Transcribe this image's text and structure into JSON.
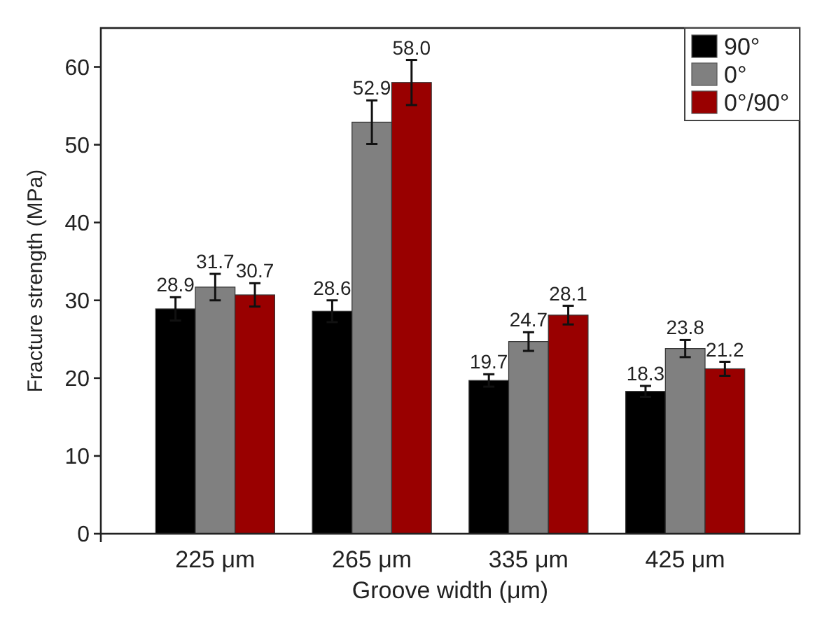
{
  "chart_data": {
    "type": "bar",
    "xlabel": "Groove width (μm)",
    "ylabel": "Fracture strength (MPa)",
    "categories": [
      "225 μm",
      "265 μm",
      "335 μm",
      "425 μm"
    ],
    "series": [
      {
        "name": "90°",
        "color": "#000000",
        "values": [
          28.9,
          28.6,
          19.7,
          18.3
        ],
        "value_labels": [
          "28.9",
          "28.6",
          "19.7",
          "18.3"
        ],
        "errors": [
          1.5,
          1.4,
          0.8,
          0.7
        ]
      },
      {
        "name": "0°",
        "color": "#808080",
        "values": [
          31.7,
          52.9,
          24.7,
          23.8
        ],
        "value_labels": [
          "31.7",
          "52.9",
          "24.7",
          "23.8"
        ],
        "errors": [
          1.7,
          2.8,
          1.2,
          1.1
        ]
      },
      {
        "name": "0°/90°",
        "color": "#990000",
        "values": [
          30.7,
          58.0,
          28.1,
          21.2
        ],
        "value_labels": [
          "30.7",
          "58.0",
          "28.1",
          "21.2"
        ],
        "errors": [
          1.5,
          2.9,
          1.2,
          0.9
        ]
      }
    ],
    "ylim": [
      0,
      65
    ],
    "yticks": [
      0,
      10,
      20,
      30,
      40,
      50,
      60
    ],
    "grid": false,
    "legend": "top right"
  }
}
